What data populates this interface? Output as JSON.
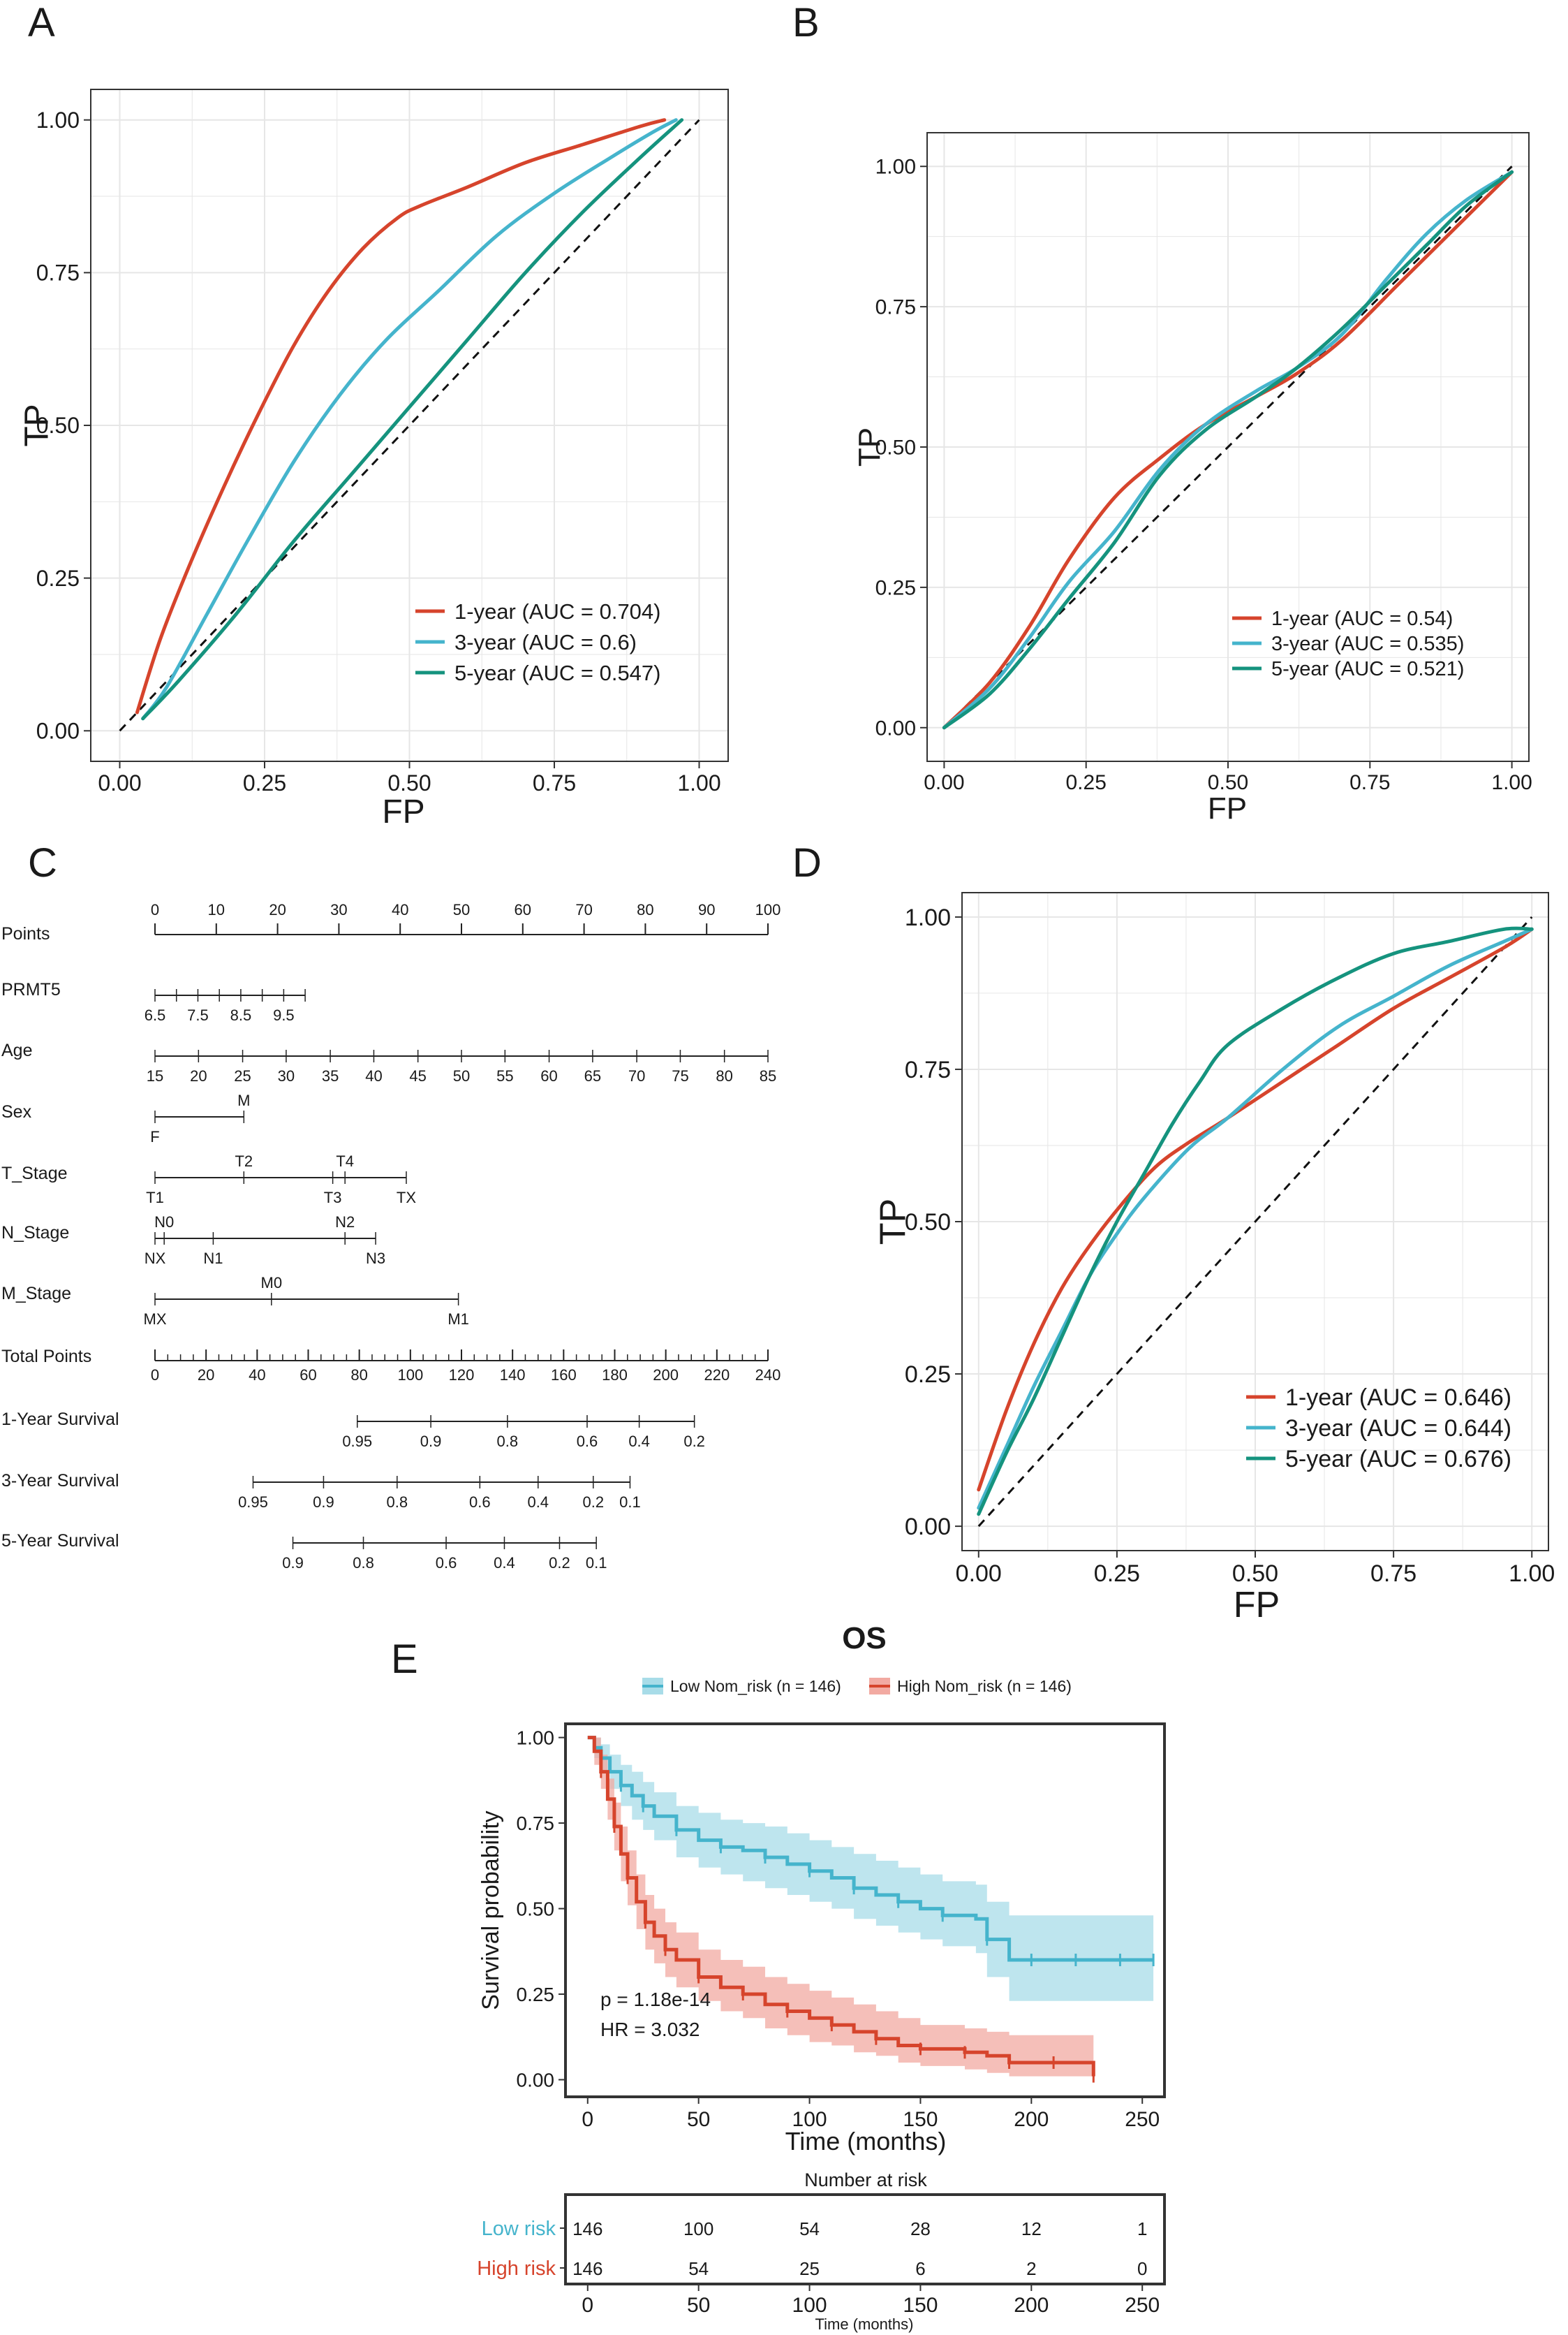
{
  "colors": {
    "red": "#d6442c",
    "blue": "#45b4cc",
    "green": "#15937e",
    "grid": "#e6e6e6",
    "band_red": "#f2aaa2",
    "band_blue": "#a8dce8"
  },
  "panel_labels": {
    "a": "A",
    "b": "B",
    "c": "C",
    "d": "D",
    "e": "E"
  },
  "chart_data": [
    {
      "id": "A",
      "type": "line",
      "xlabel": "FP",
      "ylabel": "TP",
      "xlim": [
        0,
        1
      ],
      "ylim": [
        0,
        1
      ],
      "ticks": [
        "0.00",
        "0.25",
        "0.50",
        "0.75",
        "1.00"
      ],
      "tick_values": [
        0,
        0.25,
        0.5,
        0.75,
        1
      ],
      "legend_position": "bottom-right",
      "series": [
        {
          "name": "1-year (AUC = 0.704)",
          "color": "red",
          "x": [
            0.03,
            0.07,
            0.12,
            0.18,
            0.24,
            0.3,
            0.36,
            0.42,
            0.48,
            0.52,
            0.6,
            0.7,
            0.8,
            0.9,
            0.94
          ],
          "y": [
            0.03,
            0.15,
            0.27,
            0.4,
            0.52,
            0.63,
            0.72,
            0.79,
            0.84,
            0.86,
            0.89,
            0.93,
            0.96,
            0.99,
            1.0
          ]
        },
        {
          "name": "3-year (AUC = 0.6)",
          "color": "blue",
          "x": [
            0.04,
            0.08,
            0.15,
            0.22,
            0.3,
            0.38,
            0.46,
            0.55,
            0.65,
            0.75,
            0.85,
            0.92,
            0.96
          ],
          "y": [
            0.02,
            0.07,
            0.19,
            0.31,
            0.44,
            0.55,
            0.64,
            0.72,
            0.81,
            0.88,
            0.94,
            0.98,
            1.0
          ]
        },
        {
          "name": "5-year (AUC = 0.547)",
          "color": "green",
          "x": [
            0.04,
            0.1,
            0.2,
            0.3,
            0.4,
            0.5,
            0.6,
            0.7,
            0.8,
            0.9,
            0.97
          ],
          "y": [
            0.02,
            0.08,
            0.19,
            0.31,
            0.42,
            0.53,
            0.64,
            0.75,
            0.85,
            0.94,
            1.0
          ]
        }
      ]
    },
    {
      "id": "B",
      "type": "line",
      "xlabel": "FP",
      "ylabel": "TP",
      "xlim": [
        0,
        1
      ],
      "ylim": [
        0,
        1
      ],
      "ticks": [
        "0.00",
        "0.25",
        "0.50",
        "0.75",
        "1.00"
      ],
      "tick_values": [
        0,
        0.25,
        0.5,
        0.75,
        1
      ],
      "legend_position": "bottom-right",
      "series": [
        {
          "name": "1-year (AUC = 0.54)",
          "color": "red",
          "x": [
            0,
            0.08,
            0.15,
            0.22,
            0.3,
            0.38,
            0.46,
            0.55,
            0.62,
            0.7,
            0.8,
            0.9,
            1.0
          ],
          "y": [
            0,
            0.08,
            0.18,
            0.3,
            0.41,
            0.48,
            0.54,
            0.59,
            0.63,
            0.69,
            0.79,
            0.89,
            0.99
          ]
        },
        {
          "name": "3-year (AUC = 0.535)",
          "color": "blue",
          "x": [
            0,
            0.08,
            0.15,
            0.22,
            0.3,
            0.38,
            0.46,
            0.55,
            0.62,
            0.7,
            0.78,
            0.85,
            0.92,
            1.0
          ],
          "y": [
            0,
            0.07,
            0.16,
            0.26,
            0.35,
            0.46,
            0.54,
            0.6,
            0.64,
            0.7,
            0.8,
            0.88,
            0.94,
            0.99
          ]
        },
        {
          "name": "5-year (AUC = 0.521)",
          "color": "green",
          "x": [
            0,
            0.08,
            0.15,
            0.22,
            0.3,
            0.38,
            0.46,
            0.55,
            0.62,
            0.7,
            0.78,
            0.85,
            0.92,
            1.0
          ],
          "y": [
            0,
            0.06,
            0.14,
            0.23,
            0.33,
            0.45,
            0.53,
            0.59,
            0.64,
            0.71,
            0.79,
            0.86,
            0.93,
            0.99
          ]
        }
      ]
    },
    {
      "id": "D",
      "type": "line",
      "xlabel": "FP",
      "ylabel": "TP",
      "xlim": [
        0,
        1
      ],
      "ylim": [
        0,
        1
      ],
      "ticks": [
        "0.00",
        "0.25",
        "0.50",
        "0.75",
        "1.00"
      ],
      "tick_values": [
        0,
        0.25,
        0.5,
        0.75,
        1
      ],
      "legend_position": "bottom-right",
      "series": [
        {
          "name": "1-year (AUC = 0.646)",
          "color": "red",
          "x": [
            0,
            0.05,
            0.1,
            0.15,
            0.2,
            0.26,
            0.32,
            0.38,
            0.45,
            0.55,
            0.65,
            0.75,
            0.85,
            0.95,
            1.0
          ],
          "y": [
            0.06,
            0.19,
            0.3,
            0.39,
            0.46,
            0.53,
            0.59,
            0.63,
            0.67,
            0.73,
            0.79,
            0.85,
            0.9,
            0.95,
            0.98
          ]
        },
        {
          "name": "3-year (AUC = 0.644)",
          "color": "blue",
          "x": [
            0,
            0.05,
            0.1,
            0.15,
            0.2,
            0.25,
            0.3,
            0.38,
            0.45,
            0.55,
            0.65,
            0.75,
            0.85,
            0.95,
            1.0
          ],
          "y": [
            0.03,
            0.13,
            0.23,
            0.32,
            0.41,
            0.48,
            0.54,
            0.62,
            0.67,
            0.75,
            0.82,
            0.87,
            0.92,
            0.96,
            0.98
          ]
        },
        {
          "name": "5-year (AUC = 0.676)",
          "color": "green",
          "x": [
            0,
            0.05,
            0.1,
            0.15,
            0.2,
            0.25,
            0.3,
            0.35,
            0.4,
            0.45,
            0.55,
            0.65,
            0.75,
            0.85,
            0.95,
            1.0
          ],
          "y": [
            0.02,
            0.12,
            0.21,
            0.31,
            0.41,
            0.5,
            0.58,
            0.66,
            0.73,
            0.79,
            0.85,
            0.9,
            0.94,
            0.96,
            0.98,
            0.98
          ]
        }
      ]
    }
  ],
  "diagonal": {
    "x": [
      0,
      1
    ],
    "y": [
      0,
      1
    ],
    "style": "dashed"
  },
  "nomogram": {
    "rows": [
      {
        "name": "Points",
        "type": "scale",
        "min": 0,
        "max": 100,
        "minor": 10,
        "major_labels": [
          0,
          10,
          20,
          30,
          40,
          50,
          60,
          70,
          80,
          90,
          100
        ]
      },
      {
        "name": "PRMT5",
        "labels": [
          {
            "text": "6.5",
            "pos": 0,
            "side": "below"
          },
          {
            "text": "7.5",
            "pos": 7,
            "side": "below"
          },
          {
            "text": "8.5",
            "pos": 14,
            "side": "below"
          },
          {
            "text": "9.5",
            "pos": 21,
            "side": "below"
          }
        ],
        "ticks": [
          0,
          3.5,
          7,
          10.5,
          14,
          17.5,
          21,
          24.5
        ],
        "line": [
          0,
          24.5
        ]
      },
      {
        "name": "Age",
        "labels": [
          {
            "text": "15",
            "pos": 0
          },
          {
            "text": "20",
            "pos": 7.1
          },
          {
            "text": "25",
            "pos": 14.3
          },
          {
            "text": "30",
            "pos": 21.4
          },
          {
            "text": "35",
            "pos": 28.6
          },
          {
            "text": "40",
            "pos": 35.7
          },
          {
            "text": "45",
            "pos": 42.9
          },
          {
            "text": "50",
            "pos": 50
          },
          {
            "text": "55",
            "pos": 57.1
          },
          {
            "text": "60",
            "pos": 64.3
          },
          {
            "text": "65",
            "pos": 71.4
          },
          {
            "text": "70",
            "pos": 78.6
          },
          {
            "text": "75",
            "pos": 85.7
          },
          {
            "text": "80",
            "pos": 92.9
          },
          {
            "text": "85",
            "pos": 100
          }
        ],
        "ticks": [
          0,
          7.1,
          14.3,
          21.4,
          28.6,
          35.7,
          42.9,
          50,
          57.1,
          64.3,
          71.4,
          78.6,
          85.7,
          92.9,
          100
        ],
        "line": [
          0,
          100
        ],
        "side": "below"
      },
      {
        "name": "Sex",
        "labels": [
          {
            "text": "F",
            "pos": 0,
            "side": "below"
          },
          {
            "text": "M",
            "pos": 14.5,
            "side": "above"
          }
        ],
        "ticks": [
          0,
          14.5
        ],
        "line": [
          0,
          14.5
        ]
      },
      {
        "name": "T_Stage",
        "labels": [
          {
            "text": "T1",
            "pos": 0,
            "side": "below"
          },
          {
            "text": "T2",
            "pos": 14.5,
            "side": "above"
          },
          {
            "text": "T3",
            "pos": 29,
            "side": "below"
          },
          {
            "text": "T4",
            "pos": 31,
            "side": "above"
          },
          {
            "text": "TX",
            "pos": 41,
            "side": "below"
          }
        ],
        "ticks": [
          0,
          14.5,
          29,
          31,
          41
        ],
        "line": [
          0,
          41
        ]
      },
      {
        "name": "N_Stage",
        "labels": [
          {
            "text": "NX",
            "pos": 0,
            "side": "below"
          },
          {
            "text": "N0",
            "pos": 1.5,
            "side": "above"
          },
          {
            "text": "N1",
            "pos": 9.5,
            "side": "below"
          },
          {
            "text": "N2",
            "pos": 31,
            "side": "above"
          },
          {
            "text": "N3",
            "pos": 36,
            "side": "below"
          }
        ],
        "ticks": [
          0,
          1.5,
          9.5,
          31,
          36
        ],
        "line": [
          0,
          36
        ]
      },
      {
        "name": "M_Stage",
        "labels": [
          {
            "text": "MX",
            "pos": 0,
            "side": "below"
          },
          {
            "text": "M0",
            "pos": 19,
            "side": "above"
          },
          {
            "text": "M1",
            "pos": 49.5,
            "side": "below"
          }
        ],
        "ticks": [
          0,
          19,
          49.5
        ],
        "line": [
          0,
          49.5
        ]
      },
      {
        "name": "Total Points",
        "type": "scale",
        "min": 0,
        "max": 100,
        "minor": 2.08333,
        "major_labels_text": [
          "0",
          "20",
          "40",
          "60",
          "80",
          "100",
          "120",
          "140",
          "160",
          "180",
          "200",
          "220",
          "240"
        ],
        "major_step": 8.3333
      },
      {
        "name": "1-Year Survival",
        "labels": [
          {
            "text": "0.95",
            "pos": 33
          },
          {
            "text": "0.9",
            "pos": 45
          },
          {
            "text": "0.8",
            "pos": 57.5
          },
          {
            "text": "0.6",
            "pos": 70.5
          },
          {
            "text": "0.4",
            "pos": 79
          },
          {
            "text": "0.2",
            "pos": 88
          }
        ],
        "ticks": [
          33,
          45,
          57.5,
          70.5,
          79,
          88
        ],
        "line": [
          33,
          88
        ],
        "side": "below"
      },
      {
        "name": "3-Year Survival",
        "labels": [
          {
            "text": "0.95",
            "pos": 16
          },
          {
            "text": "0.9",
            "pos": 27.5
          },
          {
            "text": "0.8",
            "pos": 39.5
          },
          {
            "text": "0.6",
            "pos": 53
          },
          {
            "text": "0.4",
            "pos": 62.5
          },
          {
            "text": "0.2",
            "pos": 71.5
          },
          {
            "text": "0.1",
            "pos": 77.5
          }
        ],
        "ticks": [
          16,
          27.5,
          39.5,
          53,
          62.5,
          71.5,
          77.5
        ],
        "line": [
          16,
          77.5
        ],
        "side": "below"
      },
      {
        "name": "5-Year Survival",
        "labels": [
          {
            "text": "0.9",
            "pos": 22.5
          },
          {
            "text": "0.8",
            "pos": 34
          },
          {
            "text": "0.6",
            "pos": 47.5
          },
          {
            "text": "0.4",
            "pos": 57
          },
          {
            "text": "0.2",
            "pos": 66
          },
          {
            "text": "0.1",
            "pos": 72
          }
        ],
        "ticks": [
          22.5,
          34,
          47.5,
          57,
          66,
          72
        ],
        "line": [
          22.5,
          72
        ],
        "side": "below"
      }
    ]
  },
  "km": {
    "title": "OS",
    "legend": [
      "Low Nom_risk (n = 146)",
      "High Nom_risk (n = 146)"
    ],
    "xlabel": "Time (months)",
    "ylabel": "Survival probability",
    "xlim": [
      0,
      255
    ],
    "ylim": [
      0,
      1
    ],
    "xticks": [
      0,
      50,
      100,
      150,
      200,
      250
    ],
    "yticks": [
      "0.00",
      "0.25",
      "0.50",
      "0.75",
      "1.00"
    ],
    "ytick_values": [
      0,
      0.25,
      0.5,
      0.75,
      1
    ],
    "pvalue": "p = 1.18e-14",
    "hr": "HR = 3.032",
    "low": {
      "t": [
        0,
        3,
        6,
        10,
        15,
        20,
        25,
        30,
        40,
        50,
        60,
        70,
        80,
        90,
        100,
        110,
        120,
        130,
        140,
        150,
        160,
        175,
        180,
        190,
        200,
        210,
        220,
        230,
        240,
        250,
        255
      ],
      "s": [
        1.0,
        0.97,
        0.94,
        0.9,
        0.86,
        0.83,
        0.8,
        0.77,
        0.73,
        0.7,
        0.68,
        0.67,
        0.65,
        0.63,
        0.61,
        0.59,
        0.56,
        0.54,
        0.52,
        0.5,
        0.48,
        0.47,
        0.41,
        0.35,
        0.35,
        0.35,
        0.35,
        0.35,
        0.35,
        0.35,
        0.35
      ],
      "lo": [
        1.0,
        0.94,
        0.9,
        0.85,
        0.8,
        0.76,
        0.73,
        0.7,
        0.65,
        0.62,
        0.6,
        0.58,
        0.56,
        0.54,
        0.52,
        0.5,
        0.47,
        0.45,
        0.43,
        0.41,
        0.39,
        0.37,
        0.3,
        0.23,
        0.23,
        0.23,
        0.23,
        0.23,
        0.23,
        0.23,
        0.23
      ],
      "hi": [
        1.0,
        1.0,
        0.98,
        0.95,
        0.92,
        0.9,
        0.87,
        0.84,
        0.8,
        0.78,
        0.76,
        0.75,
        0.74,
        0.72,
        0.7,
        0.68,
        0.66,
        0.64,
        0.62,
        0.6,
        0.58,
        0.57,
        0.52,
        0.48,
        0.48,
        0.48,
        0.48,
        0.48,
        0.48,
        0.48,
        0.48
      ]
    },
    "high": {
      "t": [
        0,
        3,
        6,
        9,
        12,
        15,
        18,
        22,
        26,
        30,
        35,
        40,
        50,
        60,
        70,
        80,
        90,
        100,
        110,
        120,
        130,
        140,
        150,
        160,
        170,
        180,
        190,
        200,
        210,
        220,
        228
      ],
      "s": [
        1.0,
        0.96,
        0.9,
        0.82,
        0.74,
        0.66,
        0.59,
        0.52,
        0.46,
        0.42,
        0.38,
        0.35,
        0.3,
        0.27,
        0.25,
        0.22,
        0.2,
        0.18,
        0.16,
        0.14,
        0.12,
        0.1,
        0.09,
        0.09,
        0.08,
        0.07,
        0.05,
        0.05,
        0.05,
        0.05,
        0.01
      ],
      "lo": [
        1.0,
        0.92,
        0.85,
        0.76,
        0.67,
        0.58,
        0.51,
        0.44,
        0.38,
        0.34,
        0.3,
        0.27,
        0.23,
        0.2,
        0.18,
        0.15,
        0.13,
        0.11,
        0.1,
        0.08,
        0.07,
        0.05,
        0.04,
        0.04,
        0.03,
        0.02,
        0.01,
        0.01,
        0.01,
        0.01,
        0.0
      ],
      "hi": [
        1.0,
        1.0,
        0.95,
        0.88,
        0.81,
        0.74,
        0.67,
        0.6,
        0.54,
        0.5,
        0.46,
        0.43,
        0.38,
        0.35,
        0.33,
        0.3,
        0.28,
        0.26,
        0.24,
        0.22,
        0.2,
        0.18,
        0.16,
        0.16,
        0.15,
        0.14,
        0.13,
        0.13,
        0.13,
        0.13,
        0.13
      ]
    },
    "risk_table": {
      "title": "Number at risk",
      "rows": [
        {
          "label": "Low risk",
          "color": "blue",
          "values": [
            "146",
            "100",
            "54",
            "28",
            "12",
            "1"
          ]
        },
        {
          "label": "High risk",
          "color": "red",
          "values": [
            "146",
            "54",
            "25",
            "6",
            "2",
            "0"
          ]
        }
      ],
      "times": [
        0,
        50,
        100,
        150,
        200,
        250
      ],
      "xlabel": "Time (months)"
    }
  }
}
